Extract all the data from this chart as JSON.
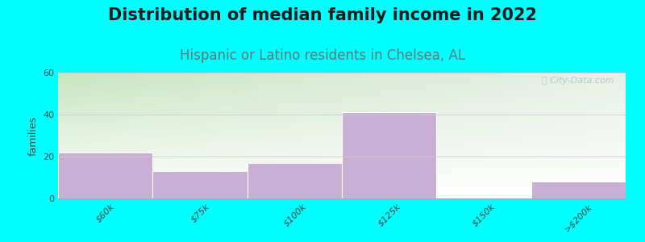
{
  "title": "Distribution of median family income in 2022",
  "subtitle": "Hispanic or Latino residents in Chelsea, AL",
  "ylabel": "families",
  "categories": [
    "$60k",
    "$75k",
    "$100k",
    "$125k",
    "$150k",
    ">$200k"
  ],
  "values": [
    22,
    13,
    17,
    41,
    0,
    8
  ],
  "bar_color": "#c9aed6",
  "bar_edgecolor": "#ffffff",
  "background_color": "#00FFFF",
  "plot_bg_top_left": "#c8e6c0",
  "plot_bg_top_right": "#e8f0e8",
  "plot_bg_bottom": "#ffffff",
  "title_fontsize": 15,
  "title_color": "#1a1a1a",
  "subtitle_fontsize": 12,
  "subtitle_color": "#5c7a7a",
  "ylabel_fontsize": 9,
  "tick_fontsize": 8,
  "ylim": [
    0,
    60
  ],
  "yticks": [
    0,
    20,
    40,
    60
  ],
  "watermark_text": "ⓘ City-Data.com",
  "grid_color": "#cccccc"
}
